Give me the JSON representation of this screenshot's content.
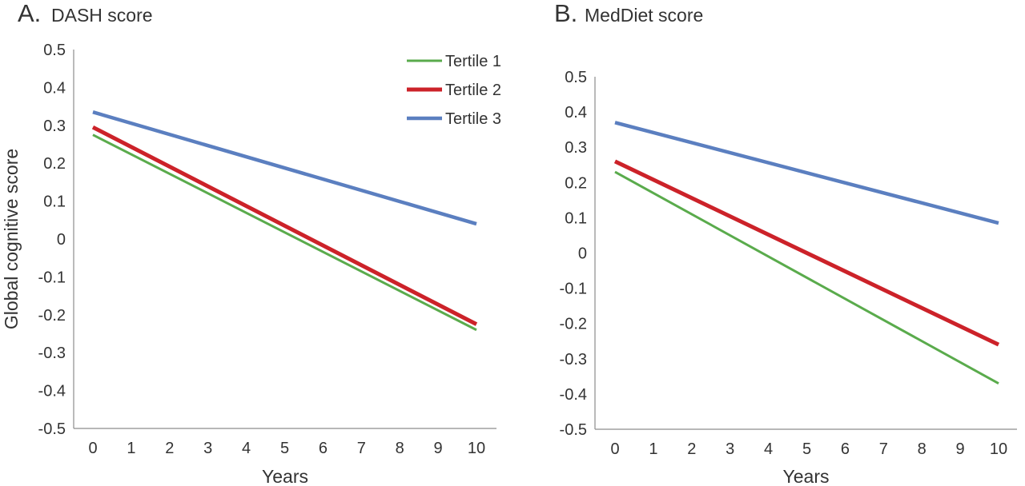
{
  "chart_data": [
    {
      "type": "line",
      "panel_label": "A.",
      "title": "DASH score",
      "xlabel": "Years",
      "ylabel": "Global cognitive score",
      "x": [
        0,
        1,
        2,
        3,
        4,
        5,
        6,
        7,
        8,
        9,
        10
      ],
      "xlim": [
        0,
        10
      ],
      "ylim": [
        -0.5,
        0.5
      ],
      "yticks": [
        "0.5",
        "0.4",
        "0.3",
        "0.2",
        "0.1",
        "0",
        "-0.1",
        "-0.2",
        "-0.3",
        "-0.4",
        "-0.5"
      ],
      "grid": false,
      "legend_position": "top-right",
      "series": [
        {
          "name": "Tertile 1",
          "color": "#5aab4c",
          "start": {
            "x": 0,
            "y": 0.275
          },
          "end": {
            "x": 10,
            "y": -0.24
          }
        },
        {
          "name": "Tertile 2",
          "color": "#cc2229",
          "start": {
            "x": 0,
            "y": 0.295
          },
          "end": {
            "x": 10,
            "y": -0.225
          }
        },
        {
          "name": "Tertile 3",
          "color": "#5b7fc0",
          "start": {
            "x": 0,
            "y": 0.335
          },
          "end": {
            "x": 10,
            "y": 0.04
          }
        }
      ]
    },
    {
      "type": "line",
      "panel_label": "B.",
      "title": "MedDiet score",
      "xlabel": "Years",
      "ylabel": "",
      "x": [
        0,
        1,
        2,
        3,
        4,
        5,
        6,
        7,
        8,
        9,
        10
      ],
      "xlim": [
        0,
        10
      ],
      "ylim": [
        -0.5,
        0.5
      ],
      "yticks": [
        "0.5",
        "0.4",
        "0.3",
        "0.2",
        "0.1",
        "0",
        "-0.1",
        "-0.2",
        "-0.3",
        "-0.4",
        "-0.5"
      ],
      "grid": false,
      "series": [
        {
          "name": "Tertile 1",
          "color": "#5aab4c",
          "start": {
            "x": 0,
            "y": 0.23
          },
          "end": {
            "x": 10,
            "y": -0.37
          }
        },
        {
          "name": "Tertile 2",
          "color": "#cc2229",
          "start": {
            "x": 0,
            "y": 0.26
          },
          "end": {
            "x": 10,
            "y": -0.26
          }
        },
        {
          "name": "Tertile 3",
          "color": "#5b7fc0",
          "start": {
            "x": 0,
            "y": 0.37
          },
          "end": {
            "x": 10,
            "y": 0.085
          }
        }
      ]
    }
  ]
}
